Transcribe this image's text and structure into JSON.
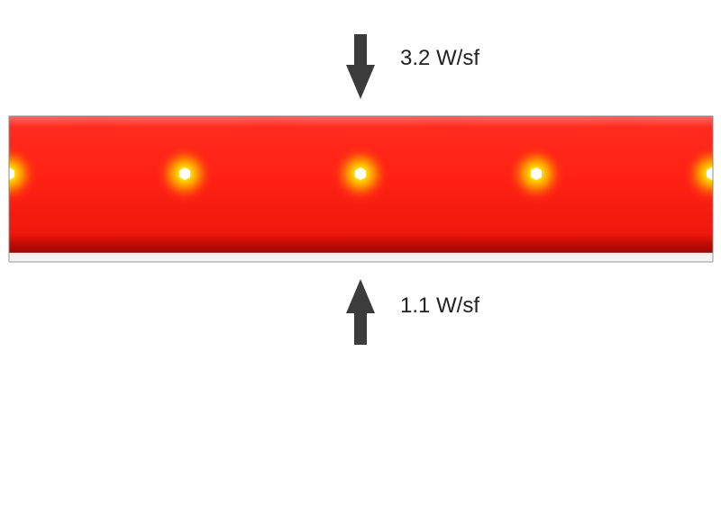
{
  "diagram": {
    "top_flux": {
      "label": "3.2 W/sf",
      "direction": "down",
      "arrow_icon": "arrow-down-icon"
    },
    "bottom_flux": {
      "label": "1.1 W/sf",
      "direction": "up",
      "arrow_icon": "arrow-up-icon"
    },
    "slab": {
      "pipe_count_visible": 5,
      "colors": {
        "base": "#ff2014",
        "dark": "#d01208",
        "hot_core": "#ffffff",
        "hot_glow": "#ffd200",
        "cool_edge": "#ffdede",
        "border": "#8a8a8a"
      }
    },
    "arrow_color": "#3c3c3c"
  }
}
